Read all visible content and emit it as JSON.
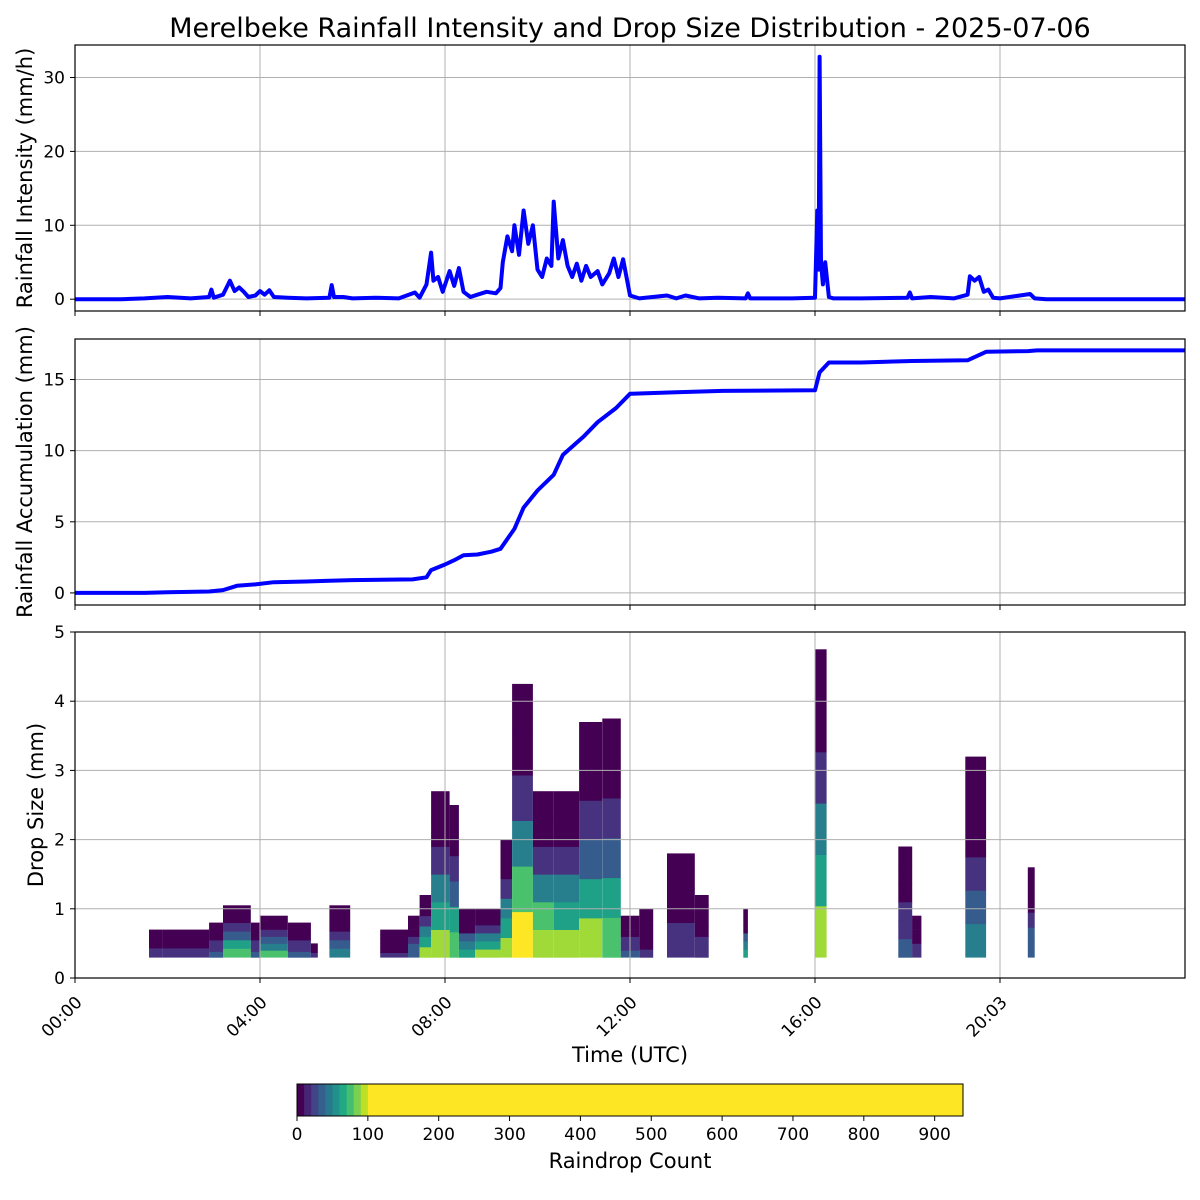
{
  "title": "Merelbeke Rainfall Intensity and Drop Size Distribution - 2025-07-06",
  "xlabel": "Time (UTC)",
  "x_ticks": [
    "00:00",
    "04:00",
    "08:00",
    "12:00",
    "16:00",
    "20:03"
  ],
  "colors": {
    "line": "#0000ff",
    "grid": "#b0b0b0"
  },
  "chart_data": [
    {
      "type": "line",
      "name": "intensity",
      "ylabel": "Rainfall Intensity (mm/h)",
      "ylim": [
        -1.6,
        34.4
      ],
      "yticks": [
        0,
        10,
        20,
        30
      ],
      "xlim_hours": [
        0,
        24
      ],
      "grid": true,
      "points": [
        [
          0,
          0
        ],
        [
          1.0,
          0
        ],
        [
          1.5,
          0.1
        ],
        [
          2.0,
          0.3
        ],
        [
          2.5,
          0.1
        ],
        [
          2.9,
          0.3
        ],
        [
          2.95,
          1.3
        ],
        [
          3.0,
          0.2
        ],
        [
          3.2,
          0.6
        ],
        [
          3.35,
          2.5
        ],
        [
          3.45,
          1.1
        ],
        [
          3.55,
          1.6
        ],
        [
          3.65,
          1.0
        ],
        [
          3.75,
          0.3
        ],
        [
          3.9,
          0.5
        ],
        [
          4.0,
          1.1
        ],
        [
          4.1,
          0.6
        ],
        [
          4.2,
          1.2
        ],
        [
          4.3,
          0.3
        ],
        [
          4.6,
          0.2
        ],
        [
          5.0,
          0.1
        ],
        [
          5.5,
          0.2
        ],
        [
          5.55,
          1.9
        ],
        [
          5.6,
          0.3
        ],
        [
          5.8,
          0.3
        ],
        [
          6.0,
          0.1
        ],
        [
          6.5,
          0.2
        ],
        [
          7.0,
          0.1
        ],
        [
          7.35,
          0.9
        ],
        [
          7.45,
          0.2
        ],
        [
          7.6,
          2.0
        ],
        [
          7.7,
          6.3
        ],
        [
          7.75,
          2.5
        ],
        [
          7.85,
          3.0
        ],
        [
          7.95,
          1.0
        ],
        [
          8.1,
          3.8
        ],
        [
          8.2,
          1.8
        ],
        [
          8.3,
          4.2
        ],
        [
          8.4,
          1.0
        ],
        [
          8.55,
          0.3
        ],
        [
          8.7,
          0.6
        ],
        [
          8.9,
          1.0
        ],
        [
          9.1,
          0.8
        ],
        [
          9.2,
          1.5
        ],
        [
          9.25,
          5.0
        ],
        [
          9.35,
          8.5
        ],
        [
          9.45,
          6.5
        ],
        [
          9.5,
          10.0
        ],
        [
          9.6,
          6.0
        ],
        [
          9.7,
          12.0
        ],
        [
          9.8,
          7.5
        ],
        [
          9.9,
          10.0
        ],
        [
          10.0,
          4.0
        ],
        [
          10.1,
          3.0
        ],
        [
          10.2,
          5.5
        ],
        [
          10.3,
          4.5
        ],
        [
          10.35,
          13.2
        ],
        [
          10.45,
          5.5
        ],
        [
          10.55,
          8.0
        ],
        [
          10.65,
          4.5
        ],
        [
          10.75,
          3.0
        ],
        [
          10.85,
          4.8
        ],
        [
          10.95,
          2.5
        ],
        [
          11.05,
          4.5
        ],
        [
          11.15,
          3.0
        ],
        [
          11.3,
          3.8
        ],
        [
          11.4,
          2.0
        ],
        [
          11.55,
          3.5
        ],
        [
          11.65,
          5.5
        ],
        [
          11.75,
          3.0
        ],
        [
          11.85,
          5.4
        ],
        [
          12.0,
          0.5
        ],
        [
          12.2,
          0.1
        ],
        [
          12.8,
          0.5
        ],
        [
          13.0,
          0.1
        ],
        [
          13.2,
          0.5
        ],
        [
          13.5,
          0.1
        ],
        [
          13.9,
          0.2
        ],
        [
          14.5,
          0.1
        ],
        [
          14.55,
          0.8
        ],
        [
          14.6,
          0.1
        ],
        [
          15.5,
          0.1
        ],
        [
          16.0,
          0.2
        ],
        [
          16.05,
          12.0
        ],
        [
          16.08,
          4.0
        ],
        [
          16.1,
          32.8
        ],
        [
          16.13,
          5.0
        ],
        [
          16.17,
          2.0
        ],
        [
          16.22,
          5.0
        ],
        [
          16.3,
          0.3
        ],
        [
          16.4,
          0.1
        ],
        [
          17.0,
          0.1
        ],
        [
          18.0,
          0.2
        ],
        [
          18.05,
          0.9
        ],
        [
          18.1,
          0.1
        ],
        [
          18.5,
          0.3
        ],
        [
          19.0,
          0.1
        ],
        [
          19.3,
          0.6
        ],
        [
          19.35,
          3.1
        ],
        [
          19.45,
          2.5
        ],
        [
          19.55,
          3.0
        ],
        [
          19.65,
          1.0
        ],
        [
          19.75,
          1.3
        ],
        [
          19.85,
          0.2
        ],
        [
          20.0,
          0.1
        ],
        [
          20.65,
          0.7
        ],
        [
          20.75,
          0.1
        ],
        [
          21.0,
          0
        ],
        [
          24.0,
          0
        ]
      ]
    },
    {
      "type": "line",
      "name": "accumulation",
      "ylabel": "Rainfall Accumulation (mm)",
      "ylim": [
        -0.85,
        17.85
      ],
      "yticks": [
        0,
        5,
        10,
        15
      ],
      "xlim_hours": [
        0,
        24
      ],
      "grid": true,
      "points": [
        [
          0,
          0
        ],
        [
          1.5,
          0
        ],
        [
          2.0,
          0.05
        ],
        [
          2.9,
          0.1
        ],
        [
          3.2,
          0.2
        ],
        [
          3.5,
          0.5
        ],
        [
          3.9,
          0.6
        ],
        [
          4.3,
          0.75
        ],
        [
          5.0,
          0.8
        ],
        [
          5.5,
          0.85
        ],
        [
          6.0,
          0.9
        ],
        [
          7.3,
          0.95
        ],
        [
          7.6,
          1.1
        ],
        [
          7.7,
          1.6
        ],
        [
          8.0,
          2.0
        ],
        [
          8.2,
          2.3
        ],
        [
          8.4,
          2.65
        ],
        [
          8.7,
          2.7
        ],
        [
          9.0,
          2.9
        ],
        [
          9.2,
          3.1
        ],
        [
          9.5,
          4.5
        ],
        [
          9.7,
          6.0
        ],
        [
          10.0,
          7.2
        ],
        [
          10.35,
          8.3
        ],
        [
          10.55,
          9.7
        ],
        [
          11.0,
          11.0
        ],
        [
          11.3,
          12.0
        ],
        [
          11.7,
          13.0
        ],
        [
          12.0,
          14.0
        ],
        [
          13.0,
          14.1
        ],
        [
          14.0,
          14.2
        ],
        [
          16.0,
          14.25
        ],
        [
          16.1,
          15.5
        ],
        [
          16.3,
          16.2
        ],
        [
          17.0,
          16.2
        ],
        [
          18.1,
          16.3
        ],
        [
          19.3,
          16.35
        ],
        [
          19.7,
          16.95
        ],
        [
          20.6,
          17.0
        ],
        [
          20.8,
          17.05
        ],
        [
          24.0,
          17.05
        ]
      ]
    },
    {
      "type": "heatmap",
      "name": "drop-size",
      "ylabel": "Drop Size (mm)",
      "ylim": [
        0,
        5
      ],
      "yticks": [
        0,
        1,
        2,
        3,
        4,
        5
      ],
      "xlim_hours": [
        0,
        24
      ],
      "grid": true,
      "columns": [
        [
          1.6,
          1.9,
          0.7,
          0.2
        ],
        [
          1.9,
          2.9,
          0.7,
          0.2
        ],
        [
          2.9,
          3.2,
          0.8,
          0.3
        ],
        [
          3.2,
          3.8,
          1.05,
          0.8
        ],
        [
          3.8,
          4.0,
          0.8,
          0.3
        ],
        [
          4.0,
          4.6,
          0.9,
          0.7
        ],
        [
          4.6,
          5.1,
          0.8,
          0.3
        ],
        [
          5.1,
          5.25,
          0.5,
          0.2
        ],
        [
          5.5,
          5.95,
          1.05,
          0.5
        ],
        [
          6.6,
          7.2,
          0.7,
          0.15
        ],
        [
          7.2,
          7.45,
          0.9,
          0.4
        ],
        [
          7.45,
          7.7,
          1.2,
          0.9
        ],
        [
          7.7,
          8.1,
          2.7,
          0.9
        ],
        [
          8.1,
          8.3,
          2.5,
          0.8
        ],
        [
          8.3,
          8.65,
          1.0,
          0.6
        ],
        [
          8.65,
          9.2,
          1.0,
          0.9
        ],
        [
          9.2,
          9.45,
          2.0,
          0.9
        ],
        [
          9.45,
          9.9,
          4.25,
          1.0
        ],
        [
          9.9,
          10.35,
          2.7,
          0.95
        ],
        [
          10.35,
          10.9,
          2.7,
          0.9
        ],
        [
          10.9,
          11.4,
          3.7,
          0.85
        ],
        [
          11.4,
          11.8,
          3.75,
          0.8
        ],
        [
          11.8,
          12.2,
          0.9,
          0.3
        ],
        [
          12.2,
          12.5,
          1.0,
          0.15
        ],
        [
          12.8,
          13.4,
          1.8,
          0.2
        ],
        [
          13.4,
          13.7,
          1.2,
          0.2
        ],
        [
          14.45,
          14.55,
          1.0,
          0.6
        ],
        [
          16.0,
          16.25,
          4.75,
          0.9
        ],
        [
          17.8,
          18.1,
          1.9,
          0.3
        ],
        [
          18.1,
          18.3,
          0.9,
          0.2
        ],
        [
          19.25,
          19.7,
          3.2,
          0.5
        ],
        [
          20.6,
          20.75,
          1.6,
          0.4
        ]
      ]
    }
  ],
  "colorbar": {
    "label": "Raindrop Count",
    "min": 0,
    "max": 940,
    "ticks": [
      0,
      100,
      200,
      300,
      400,
      500,
      600,
      700,
      800,
      900
    ],
    "colormap": "viridis"
  }
}
